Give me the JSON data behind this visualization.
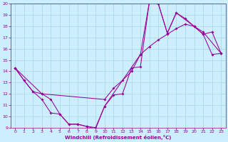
{
  "xlabel": "Windchill (Refroidissement éolien,°C)",
  "bg_color": "#cceeff",
  "line_color": "#990099",
  "grid_color": "#aadddd",
  "xlim": [
    -0.5,
    23.5
  ],
  "ylim": [
    9,
    20
  ],
  "xticks": [
    0,
    1,
    2,
    3,
    4,
    5,
    6,
    7,
    8,
    9,
    10,
    11,
    12,
    13,
    14,
    15,
    16,
    17,
    18,
    19,
    20,
    21,
    22,
    23
  ],
  "yticks": [
    9,
    10,
    11,
    12,
    13,
    14,
    15,
    16,
    17,
    18,
    19,
    20
  ],
  "line1_x": [
    0,
    1,
    2,
    3,
    4,
    5,
    6,
    7,
    8,
    9,
    10,
    11,
    12,
    13,
    14,
    15,
    16,
    17,
    18,
    19,
    20,
    21,
    22,
    23
  ],
  "line1_y": [
    14.3,
    13.2,
    12.2,
    11.5,
    10.3,
    10.2,
    9.3,
    9.3,
    9.1,
    8.9,
    10.9,
    11.9,
    12.0,
    14.3,
    14.4,
    20.2,
    20.0,
    17.4,
    19.2,
    18.7,
    18.0,
    17.3,
    15.5,
    15.6
  ],
  "line2_x": [
    0,
    3,
    10,
    11,
    12,
    13,
    14,
    15,
    16,
    17,
    18,
    19,
    20,
    21,
    23
  ],
  "line2_y": [
    14.3,
    12.0,
    11.5,
    12.5,
    13.2,
    14.0,
    15.5,
    16.2,
    16.8,
    17.3,
    17.8,
    18.2,
    18.0,
    17.5,
    15.6
  ],
  "line3_x": [
    0,
    1,
    2,
    3,
    4,
    5,
    6,
    7,
    8,
    9,
    10,
    14,
    15,
    16,
    17,
    18,
    20,
    21,
    22,
    23
  ],
  "line3_y": [
    14.3,
    13.2,
    12.2,
    12.0,
    11.5,
    10.2,
    9.3,
    9.3,
    9.1,
    9.0,
    10.9,
    15.5,
    20.2,
    20.0,
    17.4,
    19.2,
    18.0,
    17.3,
    17.5,
    15.6
  ]
}
